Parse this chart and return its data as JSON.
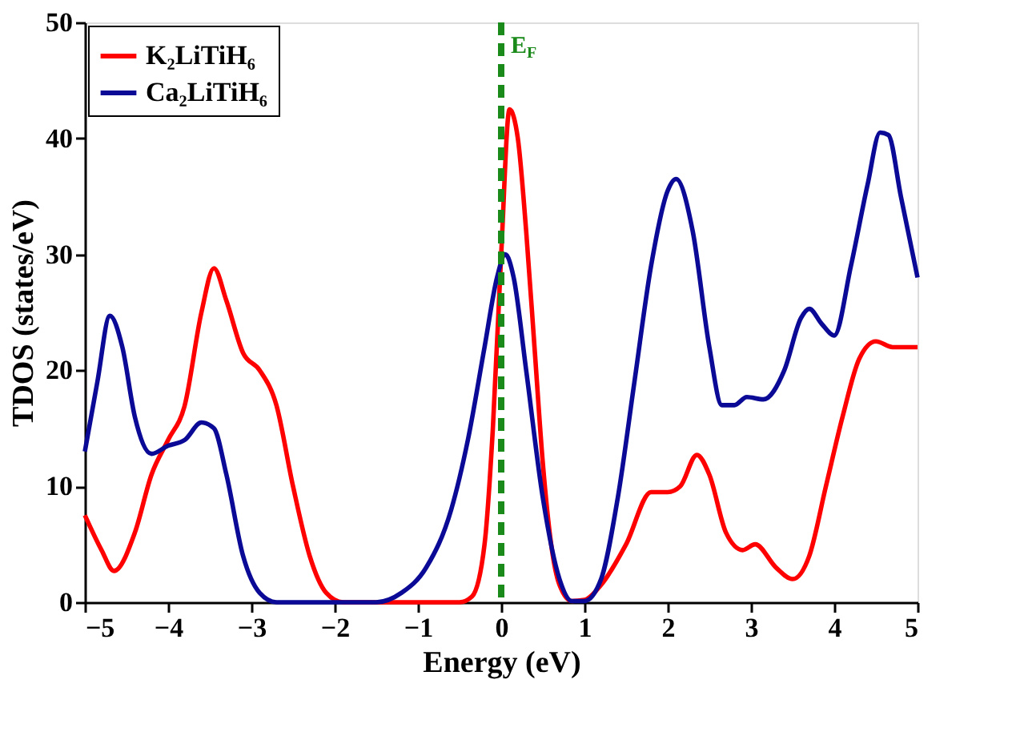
{
  "chart_data": {
    "type": "line",
    "xlabel": "Energy (eV)",
    "ylabel": "TDOS (states/eV)",
    "xlim": [
      -5,
      5
    ],
    "xticks": [
      -5,
      -4,
      -3,
      -2,
      -1,
      0,
      1,
      2,
      3,
      4,
      5
    ],
    "ylim": [
      0,
      50
    ],
    "yticks": [
      0,
      10,
      20,
      30,
      40,
      50
    ],
    "grid": false,
    "legend": "top left",
    "line_style": "solid",
    "marker": "none",
    "ref_lines": [
      {
        "axis": "x",
        "value": 0,
        "label": "E$_{F}$",
        "color": "#1a8a1a",
        "line_style": "dashed"
      }
    ],
    "series": [
      {
        "name": "K₂LiTiH₆",
        "color": "#ff0000",
        "x": [
          -5,
          -4.8,
          -4.65,
          -4.4,
          -4.2,
          -4.0,
          -3.8,
          -3.6,
          -3.45,
          -3.3,
          -3.1,
          -2.9,
          -2.7,
          -2.5,
          -2.3,
          -2.1,
          -1.9,
          -1.5,
          -1.0,
          -0.5,
          -0.35,
          -0.2,
          -0.1,
          0,
          0.1,
          0.2,
          0.3,
          0.4,
          0.5,
          0.6,
          0.7,
          0.85,
          1.0,
          1.2,
          1.5,
          1.8,
          2.0,
          2.15,
          2.35,
          2.5,
          2.7,
          2.9,
          3.05,
          3.3,
          3.5,
          3.7,
          3.9,
          4.1,
          4.3,
          4.5,
          4.7,
          5.0
        ],
        "values": [
          7.5,
          4.5,
          2.7,
          6,
          11,
          14,
          17,
          25,
          28.8,
          26,
          21.5,
          20,
          17,
          10,
          4,
          0.8,
          0,
          0,
          0,
          0,
          0.5,
          5,
          15,
          30,
          42.5,
          40,
          32,
          22,
          12,
          5,
          1.5,
          0.1,
          0.2,
          1.5,
          5,
          9.5,
          9.5,
          10,
          12.7,
          11,
          6,
          4.5,
          5,
          3,
          2,
          4,
          10,
          16,
          21,
          22.5,
          22,
          22
        ]
      },
      {
        "name": "Ca₂LiTiH₆",
        "color": "#0a0a96",
        "x": [
          -5,
          -4.85,
          -4.7,
          -4.55,
          -4.4,
          -4.2,
          -4.0,
          -3.8,
          -3.6,
          -3.45,
          -3.3,
          -3.1,
          -2.9,
          -2.7,
          -2.0,
          -1.5,
          -1.2,
          -0.9,
          -0.6,
          -0.4,
          -0.2,
          -0.05,
          0.05,
          0.15,
          0.3,
          0.5,
          0.7,
          0.85,
          1.0,
          1.2,
          1.4,
          1.6,
          1.8,
          2.0,
          2.1,
          2.3,
          2.5,
          2.65,
          2.8,
          2.95,
          3.15,
          3.4,
          3.6,
          3.7,
          3.85,
          4.0,
          4.2,
          4.4,
          4.55,
          4.65,
          4.8,
          5.0
        ],
        "values": [
          13,
          19,
          24.7,
          22,
          16,
          12.8,
          13.5,
          14,
          15.5,
          15,
          11,
          4,
          0.8,
          0,
          0,
          0,
          0.8,
          3,
          8,
          14,
          22,
          28,
          30,
          28,
          20,
          9,
          2,
          0.1,
          0.1,
          2,
          9,
          19,
          29,
          35.5,
          36.5,
          32,
          22,
          17,
          17,
          17.7,
          17.5,
          20,
          24.5,
          25.3,
          24,
          23,
          29,
          36,
          40.5,
          40.3,
          35,
          28
        ]
      }
    ]
  }
}
